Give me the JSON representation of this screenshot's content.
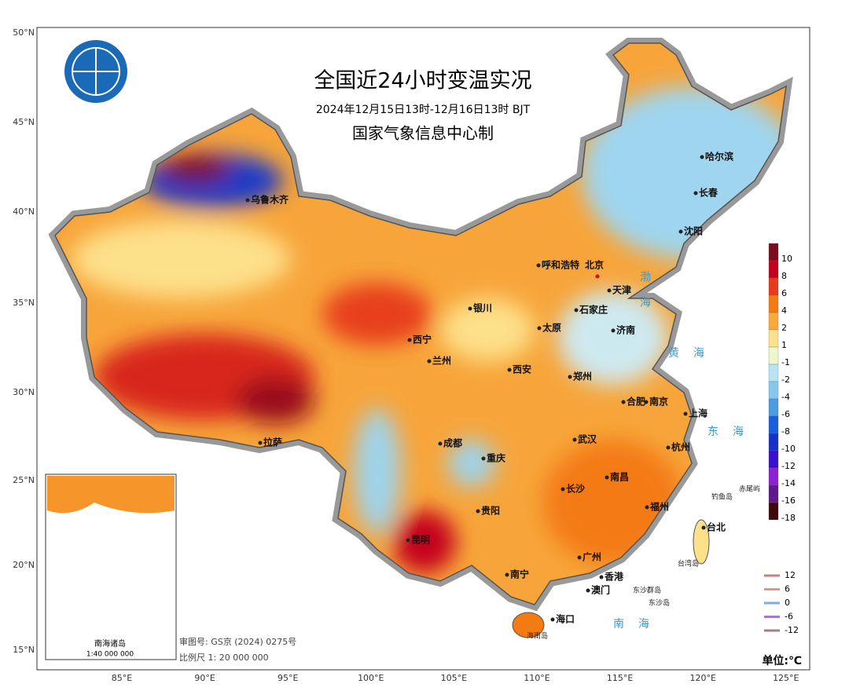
{
  "header": {
    "title": "全国近24小时变温实况",
    "subtitle": "2024年12月15日13时-12月16日13时 BJT",
    "producer": "国家气象信息中心制"
  },
  "lat_labels": [
    "50°N",
    "45°N",
    "40°N",
    "35°N",
    "30°N",
    "25°N",
    "20°N",
    "15°N"
  ],
  "lon_labels": [
    "85°E",
    "90°E",
    "95°E",
    "100°E",
    "105°E",
    "110°E",
    "115°E",
    "120°E",
    "125°E"
  ],
  "cities": [
    "乌鲁木齐",
    "呼和浩特",
    "北京",
    "天津",
    "石家庄",
    "哈尔滨",
    "长春",
    "沈阳",
    "银川",
    "太原",
    "济南",
    "西宁",
    "兰州",
    "西安",
    "郑州",
    "合肥",
    "南京",
    "上海",
    "成都",
    "武汉",
    "杭州",
    "拉萨",
    "重庆",
    "南昌",
    "长沙",
    "贵阳",
    "福州",
    "昆明",
    "台北",
    "南宁",
    "广州",
    "香港",
    "澳门",
    "海口"
  ],
  "seas": [
    "渤海",
    "黄海",
    "东海",
    "南海"
  ],
  "islands": [
    "钓鱼岛",
    "赤尾屿",
    "台湾岛",
    "东沙群岛",
    "东沙岛",
    "海南岛"
  ],
  "legend": {
    "items": [
      {
        "label": "10",
        "color": "#7a0c1e"
      },
      {
        "label": "8",
        "color": "#c4001e"
      },
      {
        "label": "6",
        "color": "#ea3a1c"
      },
      {
        "label": "4",
        "color": "#f47a12"
      },
      {
        "label": "2",
        "color": "#f8a93a"
      },
      {
        "label": "1",
        "color": "#fde08a"
      },
      {
        "label": "-1",
        "color": "#eef7cc"
      },
      {
        "label": "-2",
        "color": "#b7e4f2"
      },
      {
        "label": "-4",
        "color": "#86c8ec"
      },
      {
        "label": "-6",
        "color": "#4d9be0"
      },
      {
        "label": "-8",
        "color": "#1a5ee0"
      },
      {
        "label": "-10",
        "color": "#1633c8"
      },
      {
        "label": "-12",
        "color": "#3a10d0"
      },
      {
        "label": "-14",
        "color": "#8c22d4"
      },
      {
        "label": "-16",
        "color": "#5e1a8a"
      },
      {
        "label": "-18",
        "color": "#3e0a10"
      }
    ]
  },
  "contour_legend": {
    "items": [
      {
        "label": "12",
        "color": "#c98080"
      },
      {
        "label": "6",
        "color": "#e89090"
      },
      {
        "label": "0",
        "color": "#7aaee8"
      },
      {
        "label": "-6",
        "color": "#a07ad0"
      },
      {
        "label": "-12",
        "color": "#a08080"
      }
    ]
  },
  "footer": {
    "approval": "审图号: GS京 (2024) 0275号",
    "scale": "比例尺 1: 20 000 000",
    "unit": "单位:℃"
  },
  "inset": {
    "title": "南海诸岛",
    "scale": "1:40 000 000"
  }
}
